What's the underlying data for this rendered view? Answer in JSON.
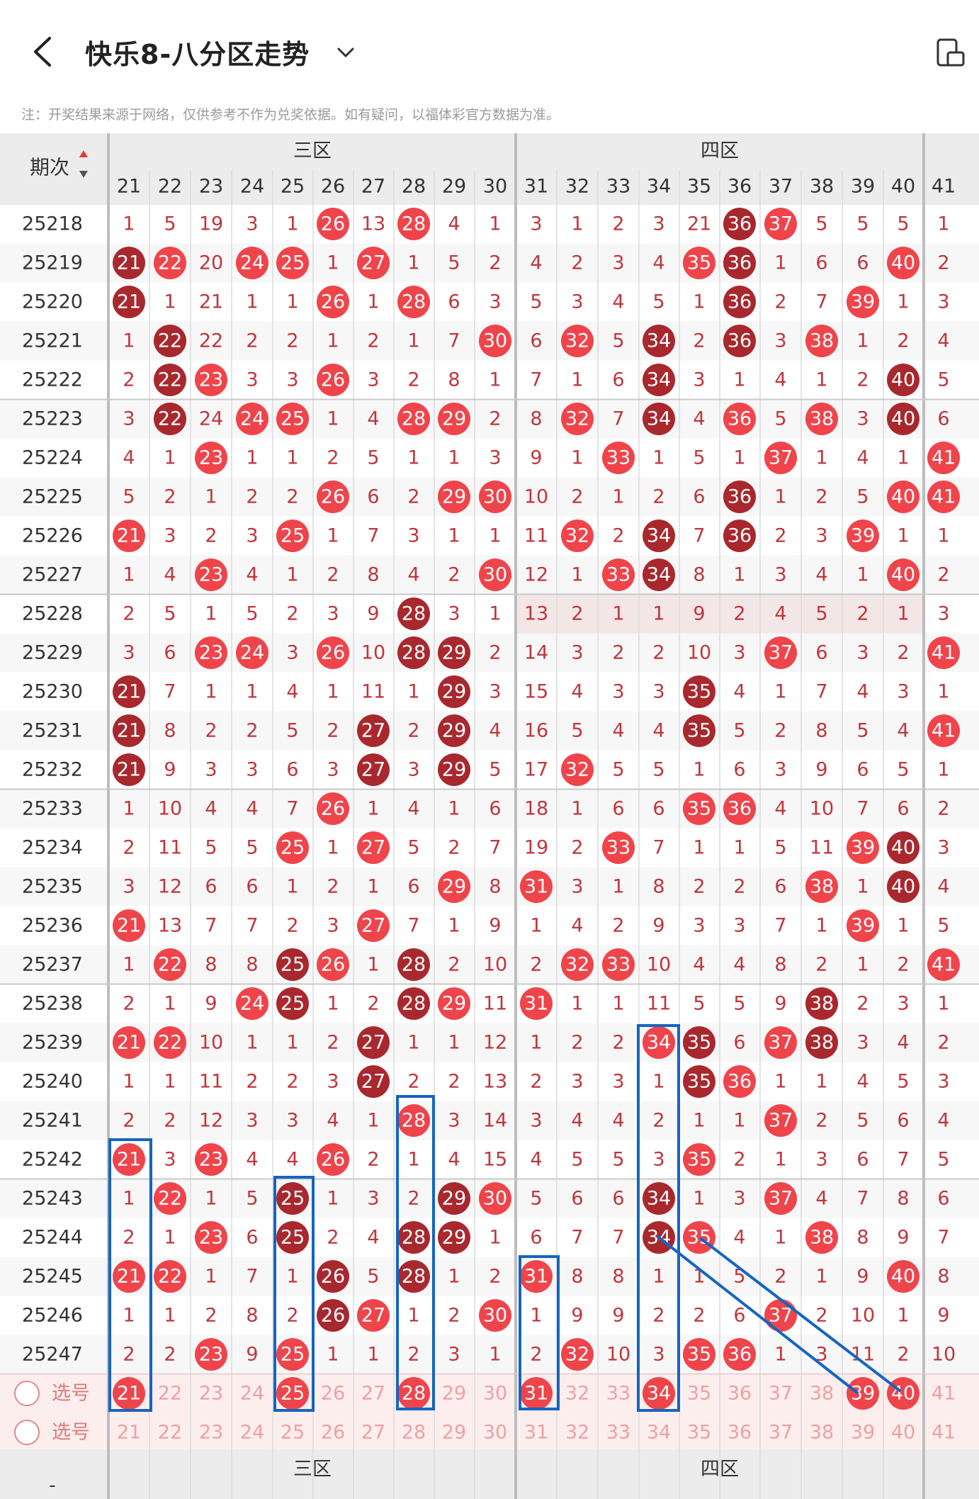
{
  "header": {
    "title": "快乐8-八分区走势"
  },
  "notice": "注：开奖结果来源于网络，仅供参考不作为兑奖依据。如有疑问，以福体彩官方数据为准。",
  "table": {
    "issue_header": "期次",
    "zones": [
      "三区",
      "四区"
    ],
    "columns": [
      21,
      22,
      23,
      24,
      25,
      26,
      27,
      28,
      29,
      30,
      31,
      32,
      33,
      34,
      35,
      36,
      37,
      38,
      39,
      40,
      41
    ],
    "rows": [
      {
        "issue": "25218",
        "cells": [
          1,
          5,
          19,
          3,
          1,
          26,
          13,
          28,
          4,
          1,
          3,
          1,
          2,
          3,
          21,
          36,
          37,
          5,
          5,
          5,
          1
        ]
      },
      {
        "issue": "25219",
        "cells": [
          21,
          22,
          20,
          24,
          25,
          1,
          27,
          1,
          5,
          2,
          4,
          2,
          3,
          4,
          35,
          36,
          1,
          6,
          6,
          40,
          2
        ]
      },
      {
        "issue": "25220",
        "cells": [
          21,
          1,
          21,
          1,
          1,
          26,
          1,
          28,
          6,
          3,
          5,
          3,
          4,
          5,
          1,
          36,
          2,
          7,
          39,
          1,
          3
        ]
      },
      {
        "issue": "25221",
        "cells": [
          1,
          22,
          22,
          2,
          2,
          1,
          2,
          1,
          7,
          30,
          6,
          32,
          5,
          34,
          2,
          36,
          3,
          38,
          1,
          2,
          4
        ]
      },
      {
        "issue": "25222",
        "cells": [
          2,
          22,
          23,
          3,
          3,
          26,
          3,
          2,
          8,
          1,
          7,
          1,
          6,
          34,
          3,
          1,
          4,
          1,
          2,
          40,
          5
        ]
      },
      {
        "issue": "25223",
        "cells": [
          3,
          22,
          24,
          24,
          25,
          1,
          4,
          28,
          29,
          2,
          8,
          32,
          7,
          34,
          4,
          36,
          5,
          38,
          3,
          40,
          6
        ]
      },
      {
        "issue": "25224",
        "cells": [
          4,
          1,
          23,
          1,
          1,
          2,
          5,
          1,
          1,
          3,
          9,
          1,
          33,
          1,
          5,
          1,
          37,
          1,
          4,
          1,
          41
        ]
      },
      {
        "issue": "25225",
        "cells": [
          5,
          2,
          1,
          2,
          2,
          26,
          6,
          2,
          29,
          30,
          10,
          2,
          1,
          2,
          6,
          36,
          1,
          2,
          5,
          40,
          41
        ]
      },
      {
        "issue": "25226",
        "cells": [
          21,
          3,
          2,
          3,
          25,
          1,
          7,
          3,
          1,
          1,
          11,
          32,
          2,
          34,
          7,
          36,
          2,
          3,
          39,
          1,
          1
        ]
      },
      {
        "issue": "25227",
        "cells": [
          1,
          4,
          23,
          4,
          1,
          2,
          8,
          4,
          2,
          30,
          12,
          1,
          33,
          34,
          8,
          1,
          3,
          4,
          1,
          40,
          2
        ]
      },
      {
        "issue": "25228",
        "cells": [
          2,
          5,
          1,
          5,
          2,
          3,
          9,
          28,
          3,
          1,
          13,
          2,
          1,
          1,
          9,
          2,
          4,
          5,
          2,
          1,
          3
        ]
      },
      {
        "issue": "25229",
        "cells": [
          3,
          6,
          23,
          24,
          3,
          26,
          10,
          28,
          29,
          2,
          14,
          3,
          2,
          2,
          10,
          3,
          37,
          6,
          3,
          2,
          41
        ]
      },
      {
        "issue": "25230",
        "cells": [
          21,
          7,
          1,
          1,
          4,
          1,
          11,
          1,
          29,
          3,
          15,
          4,
          3,
          3,
          35,
          4,
          1,
          7,
          4,
          3,
          1
        ]
      },
      {
        "issue": "25231",
        "cells": [
          21,
          8,
          2,
          2,
          5,
          2,
          27,
          2,
          29,
          4,
          16,
          5,
          4,
          4,
          35,
          5,
          2,
          8,
          5,
          4,
          41
        ]
      },
      {
        "issue": "25232",
        "cells": [
          21,
          9,
          3,
          3,
          6,
          3,
          27,
          3,
          29,
          5,
          17,
          32,
          5,
          5,
          1,
          6,
          3,
          9,
          6,
          5,
          1
        ]
      },
      {
        "issue": "25233",
        "cells": [
          1,
          10,
          4,
          4,
          7,
          26,
          1,
          4,
          1,
          6,
          18,
          1,
          6,
          6,
          35,
          36,
          4,
          10,
          7,
          6,
          2
        ]
      },
      {
        "issue": "25234",
        "cells": [
          2,
          11,
          5,
          5,
          25,
          1,
          27,
          5,
          2,
          7,
          19,
          2,
          33,
          7,
          1,
          1,
          5,
          11,
          39,
          40,
          3
        ]
      },
      {
        "issue": "25235",
        "cells": [
          3,
          12,
          6,
          6,
          1,
          2,
          1,
          6,
          29,
          8,
          31,
          3,
          1,
          8,
          2,
          2,
          6,
          38,
          1,
          40,
          4
        ]
      },
      {
        "issue": "25236",
        "cells": [
          21,
          13,
          7,
          7,
          2,
          3,
          27,
          7,
          1,
          9,
          1,
          4,
          2,
          9,
          3,
          3,
          7,
          1,
          39,
          1,
          5
        ]
      },
      {
        "issue": "25237",
        "cells": [
          1,
          22,
          8,
          8,
          25,
          26,
          1,
          28,
          2,
          10,
          2,
          32,
          33,
          10,
          4,
          4,
          8,
          2,
          1,
          2,
          41
        ]
      },
      {
        "issue": "25238",
        "cells": [
          2,
          1,
          9,
          24,
          25,
          1,
          2,
          28,
          29,
          11,
          31,
          1,
          1,
          11,
          5,
          5,
          9,
          38,
          2,
          3,
          1
        ]
      },
      {
        "issue": "25239",
        "cells": [
          21,
          22,
          10,
          1,
          1,
          2,
          27,
          1,
          1,
          12,
          1,
          2,
          2,
          34,
          35,
          6,
          37,
          38,
          3,
          4,
          2
        ]
      },
      {
        "issue": "25240",
        "cells": [
          1,
          1,
          11,
          2,
          2,
          3,
          27,
          2,
          2,
          13,
          2,
          3,
          3,
          1,
          35,
          36,
          1,
          1,
          4,
          5,
          3
        ]
      },
      {
        "issue": "25241",
        "cells": [
          2,
          2,
          12,
          3,
          3,
          4,
          1,
          28,
          3,
          14,
          3,
          4,
          4,
          2,
          1,
          1,
          37,
          2,
          5,
          6,
          4
        ]
      },
      {
        "issue": "25242",
        "cells": [
          21,
          3,
          23,
          4,
          4,
          26,
          2,
          1,
          4,
          15,
          4,
          5,
          5,
          3,
          35,
          2,
          1,
          3,
          6,
          7,
          5
        ]
      },
      {
        "issue": "25243",
        "cells": [
          1,
          22,
          1,
          5,
          25,
          1,
          3,
          2,
          29,
          30,
          5,
          6,
          6,
          34,
          1,
          3,
          37,
          4,
          7,
          8,
          6
        ]
      },
      {
        "issue": "25244",
        "cells": [
          2,
          1,
          23,
          6,
          25,
          2,
          4,
          28,
          29,
          1,
          6,
          7,
          7,
          34,
          35,
          4,
          1,
          38,
          8,
          9,
          7
        ]
      },
      {
        "issue": "25245",
        "cells": [
          21,
          22,
          1,
          7,
          1,
          26,
          5,
          28,
          1,
          2,
          31,
          8,
          8,
          1,
          1,
          5,
          2,
          1,
          9,
          40,
          8
        ]
      },
      {
        "issue": "25246",
        "cells": [
          1,
          1,
          2,
          8,
          2,
          26,
          27,
          1,
          2,
          30,
          1,
          9,
          9,
          2,
          2,
          6,
          37,
          2,
          10,
          1,
          9
        ]
      },
      {
        "issue": "25247",
        "cells": [
          2,
          2,
          23,
          9,
          25,
          1,
          1,
          2,
          3,
          1,
          2,
          32,
          10,
          3,
          35,
          36,
          1,
          3,
          11,
          2,
          10
        ]
      }
    ],
    "select_label": "选号",
    "footer_zones": [
      "三区",
      "四区"
    ],
    "footer_issue": "-"
  },
  "colors": {
    "hit": "#f0444b",
    "repeat": "#a8282e",
    "text": "#c0363c",
    "grid": "#dcdcdc",
    "header_bg": "#ececec",
    "select_bg": "#fdeeee",
    "pen": "#1565c0"
  }
}
